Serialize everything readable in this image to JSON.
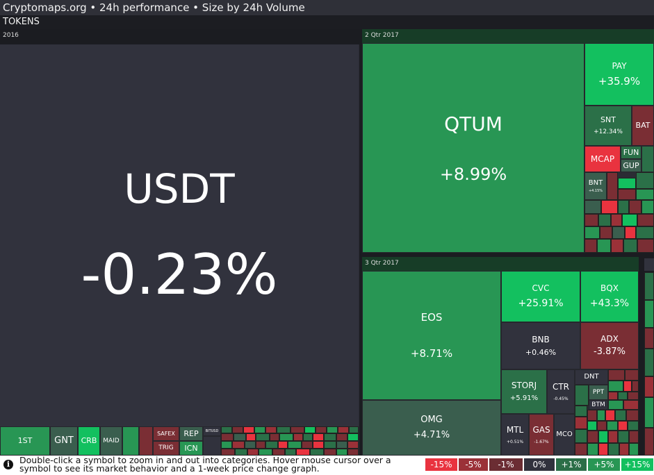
{
  "header": {
    "title": "Cryptomaps.org • 24h performance • Size by 24h Volume",
    "category": "TOKENS"
  },
  "groups": {
    "g2016": "2016",
    "q2_2017": "2 Qtr 2017",
    "q3_2017": "3 Qtr 2017"
  },
  "tiles": {
    "usdt": {
      "symbol": "USDT",
      "change": "-0.23%"
    },
    "qtum": {
      "symbol": "QTUM",
      "change": "+8.99%"
    },
    "pay": {
      "symbol": "PAY",
      "change": "+35.9%"
    },
    "snt": {
      "symbol": "SNT",
      "change": "+12.34%"
    },
    "bat": {
      "symbol": "BAT"
    },
    "mcap": {
      "symbol": "MCAP"
    },
    "fun": {
      "symbol": "FUN"
    },
    "gup": {
      "symbol": "GUP"
    },
    "bnt": {
      "symbol": "BNT",
      "change": "+4.15%"
    },
    "eos": {
      "symbol": "EOS",
      "change": "+8.71%"
    },
    "omg": {
      "symbol": "OMG",
      "change": "+4.71%"
    },
    "cvc": {
      "symbol": "CVC",
      "change": "+25.91%"
    },
    "bqx": {
      "symbol": "BQX",
      "change": "+43.3%"
    },
    "bnb": {
      "symbol": "BNB",
      "change": "+0.46%"
    },
    "adx": {
      "symbol": "ADX",
      "change": "-3.87%"
    },
    "storj": {
      "symbol": "STORJ",
      "change": "+5.91%"
    },
    "ctr": {
      "symbol": "CTR",
      "change": "-0.45%"
    },
    "dnt": {
      "symbol": "DNT"
    },
    "ppt": {
      "symbol": "PPT"
    },
    "btm": {
      "symbol": "BTM"
    },
    "mtl": {
      "symbol": "MTL",
      "change": "+0.51%"
    },
    "gas": {
      "symbol": "GAS",
      "change": "-1.67%"
    },
    "mco": {
      "symbol": "MCO"
    },
    "first": {
      "symbol": "1ST"
    },
    "gnt": {
      "symbol": "GNT"
    },
    "crb": {
      "symbol": "CRB"
    },
    "maid": {
      "symbol": "MAID"
    },
    "safex": {
      "symbol": "SAFEX"
    },
    "trig": {
      "symbol": "TRIG"
    },
    "rep": {
      "symbol": "REP"
    },
    "icn": {
      "symbol": "ICN"
    },
    "bitusd": {
      "symbol": "BITUSD"
    }
  },
  "footer": {
    "hint": "Double-click a symbol to zoom in and out into categories. Hover mouse cursor over a symbol to see its market behavior and a 1-week price change graph."
  },
  "legend": [
    {
      "label": "-15%",
      "color": "#e9333f"
    },
    {
      "label": "-5%",
      "color": "#9b3138"
    },
    {
      "label": "-1%",
      "color": "#6b2d33"
    },
    {
      "label": "0%",
      "color": "#31323d"
    },
    {
      "label": "+1%",
      "color": "#2b6e47"
    },
    {
      "label": "+5%",
      "color": "#289654"
    },
    {
      "label": "+15%",
      "color": "#13c05f"
    }
  ]
}
